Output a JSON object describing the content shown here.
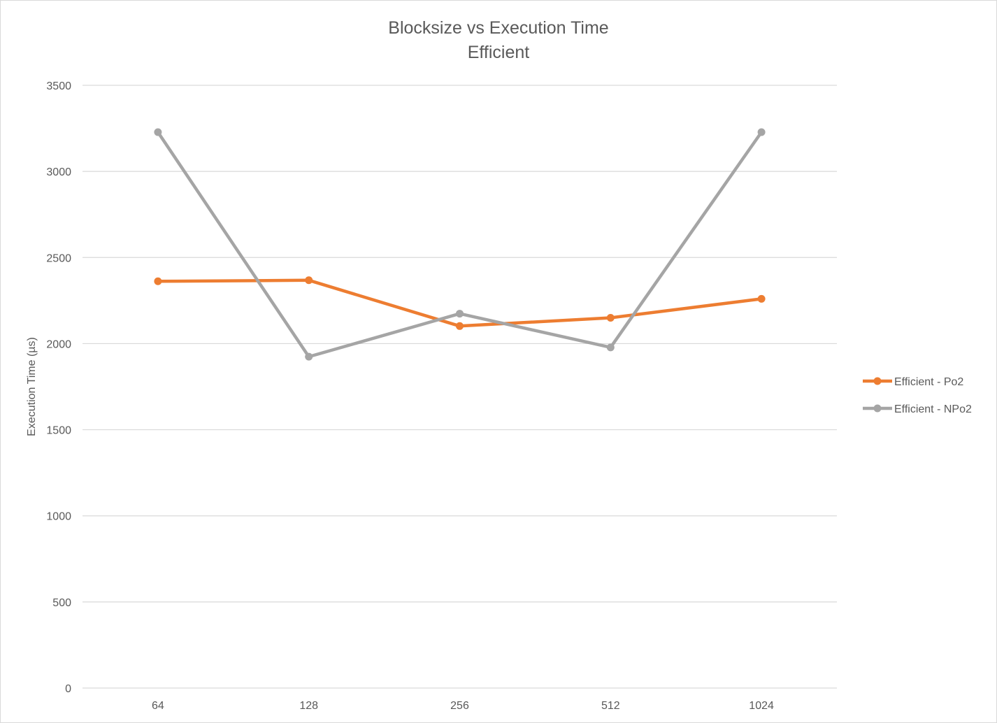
{
  "chart_data": {
    "type": "line",
    "title": "Blocksize vs Execution Time",
    "subtitle": "Efficient",
    "xlabel": "",
    "ylabel": "Execution Time (µs)",
    "categories": [
      "64",
      "128",
      "256",
      "512",
      "1024"
    ],
    "yticks": [
      "0",
      "500",
      "1000",
      "1500",
      "2000",
      "2500",
      "3000",
      "3500"
    ],
    "ylim": [
      0,
      3500
    ],
    "grid": true,
    "legend_position": "right",
    "series": [
      {
        "name": "Efficient - Po2",
        "color": "#ED7D31",
        "values": [
          2362,
          2368,
          2102,
          2150,
          2260
        ]
      },
      {
        "name": "Efficient - NPo2",
        "color": "#A5A5A5",
        "values": [
          3228,
          1924,
          2174,
          1978,
          3228
        ]
      }
    ]
  }
}
